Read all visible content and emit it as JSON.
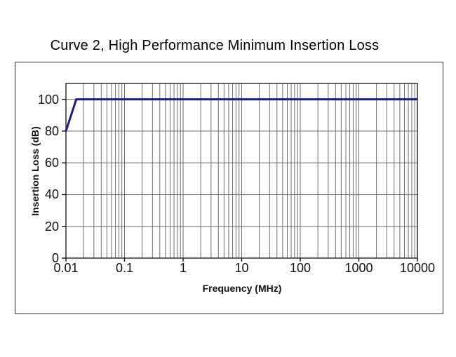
{
  "chart_data": {
    "type": "line",
    "title": "Curve 2, High Performance Minimum Insertion Loss",
    "xlabel": "Frequency (MHz)",
    "ylabel": "Insertion Loss (dB)",
    "x_scale": "log",
    "xlim": [
      0.01,
      10000
    ],
    "ylim": [
      0,
      110
    ],
    "x_tick_labels": [
      "0.01",
      "0.1",
      "1",
      "10",
      "100",
      "1000",
      "10000"
    ],
    "x_ticks": [
      0.01,
      0.1,
      1,
      10,
      100,
      1000,
      10000
    ],
    "y_ticks": [
      0,
      20,
      40,
      60,
      80,
      100
    ],
    "grid": {
      "major": true,
      "minor_x": true,
      "color": "#6e6e6e",
      "border_color": "#222222"
    },
    "legend": "none",
    "series": [
      {
        "color": "#1c1c8f",
        "line_width": 3,
        "points": [
          [
            0.01,
            80
          ],
          [
            0.015,
            100
          ],
          [
            10000,
            100
          ]
        ]
      }
    ]
  }
}
